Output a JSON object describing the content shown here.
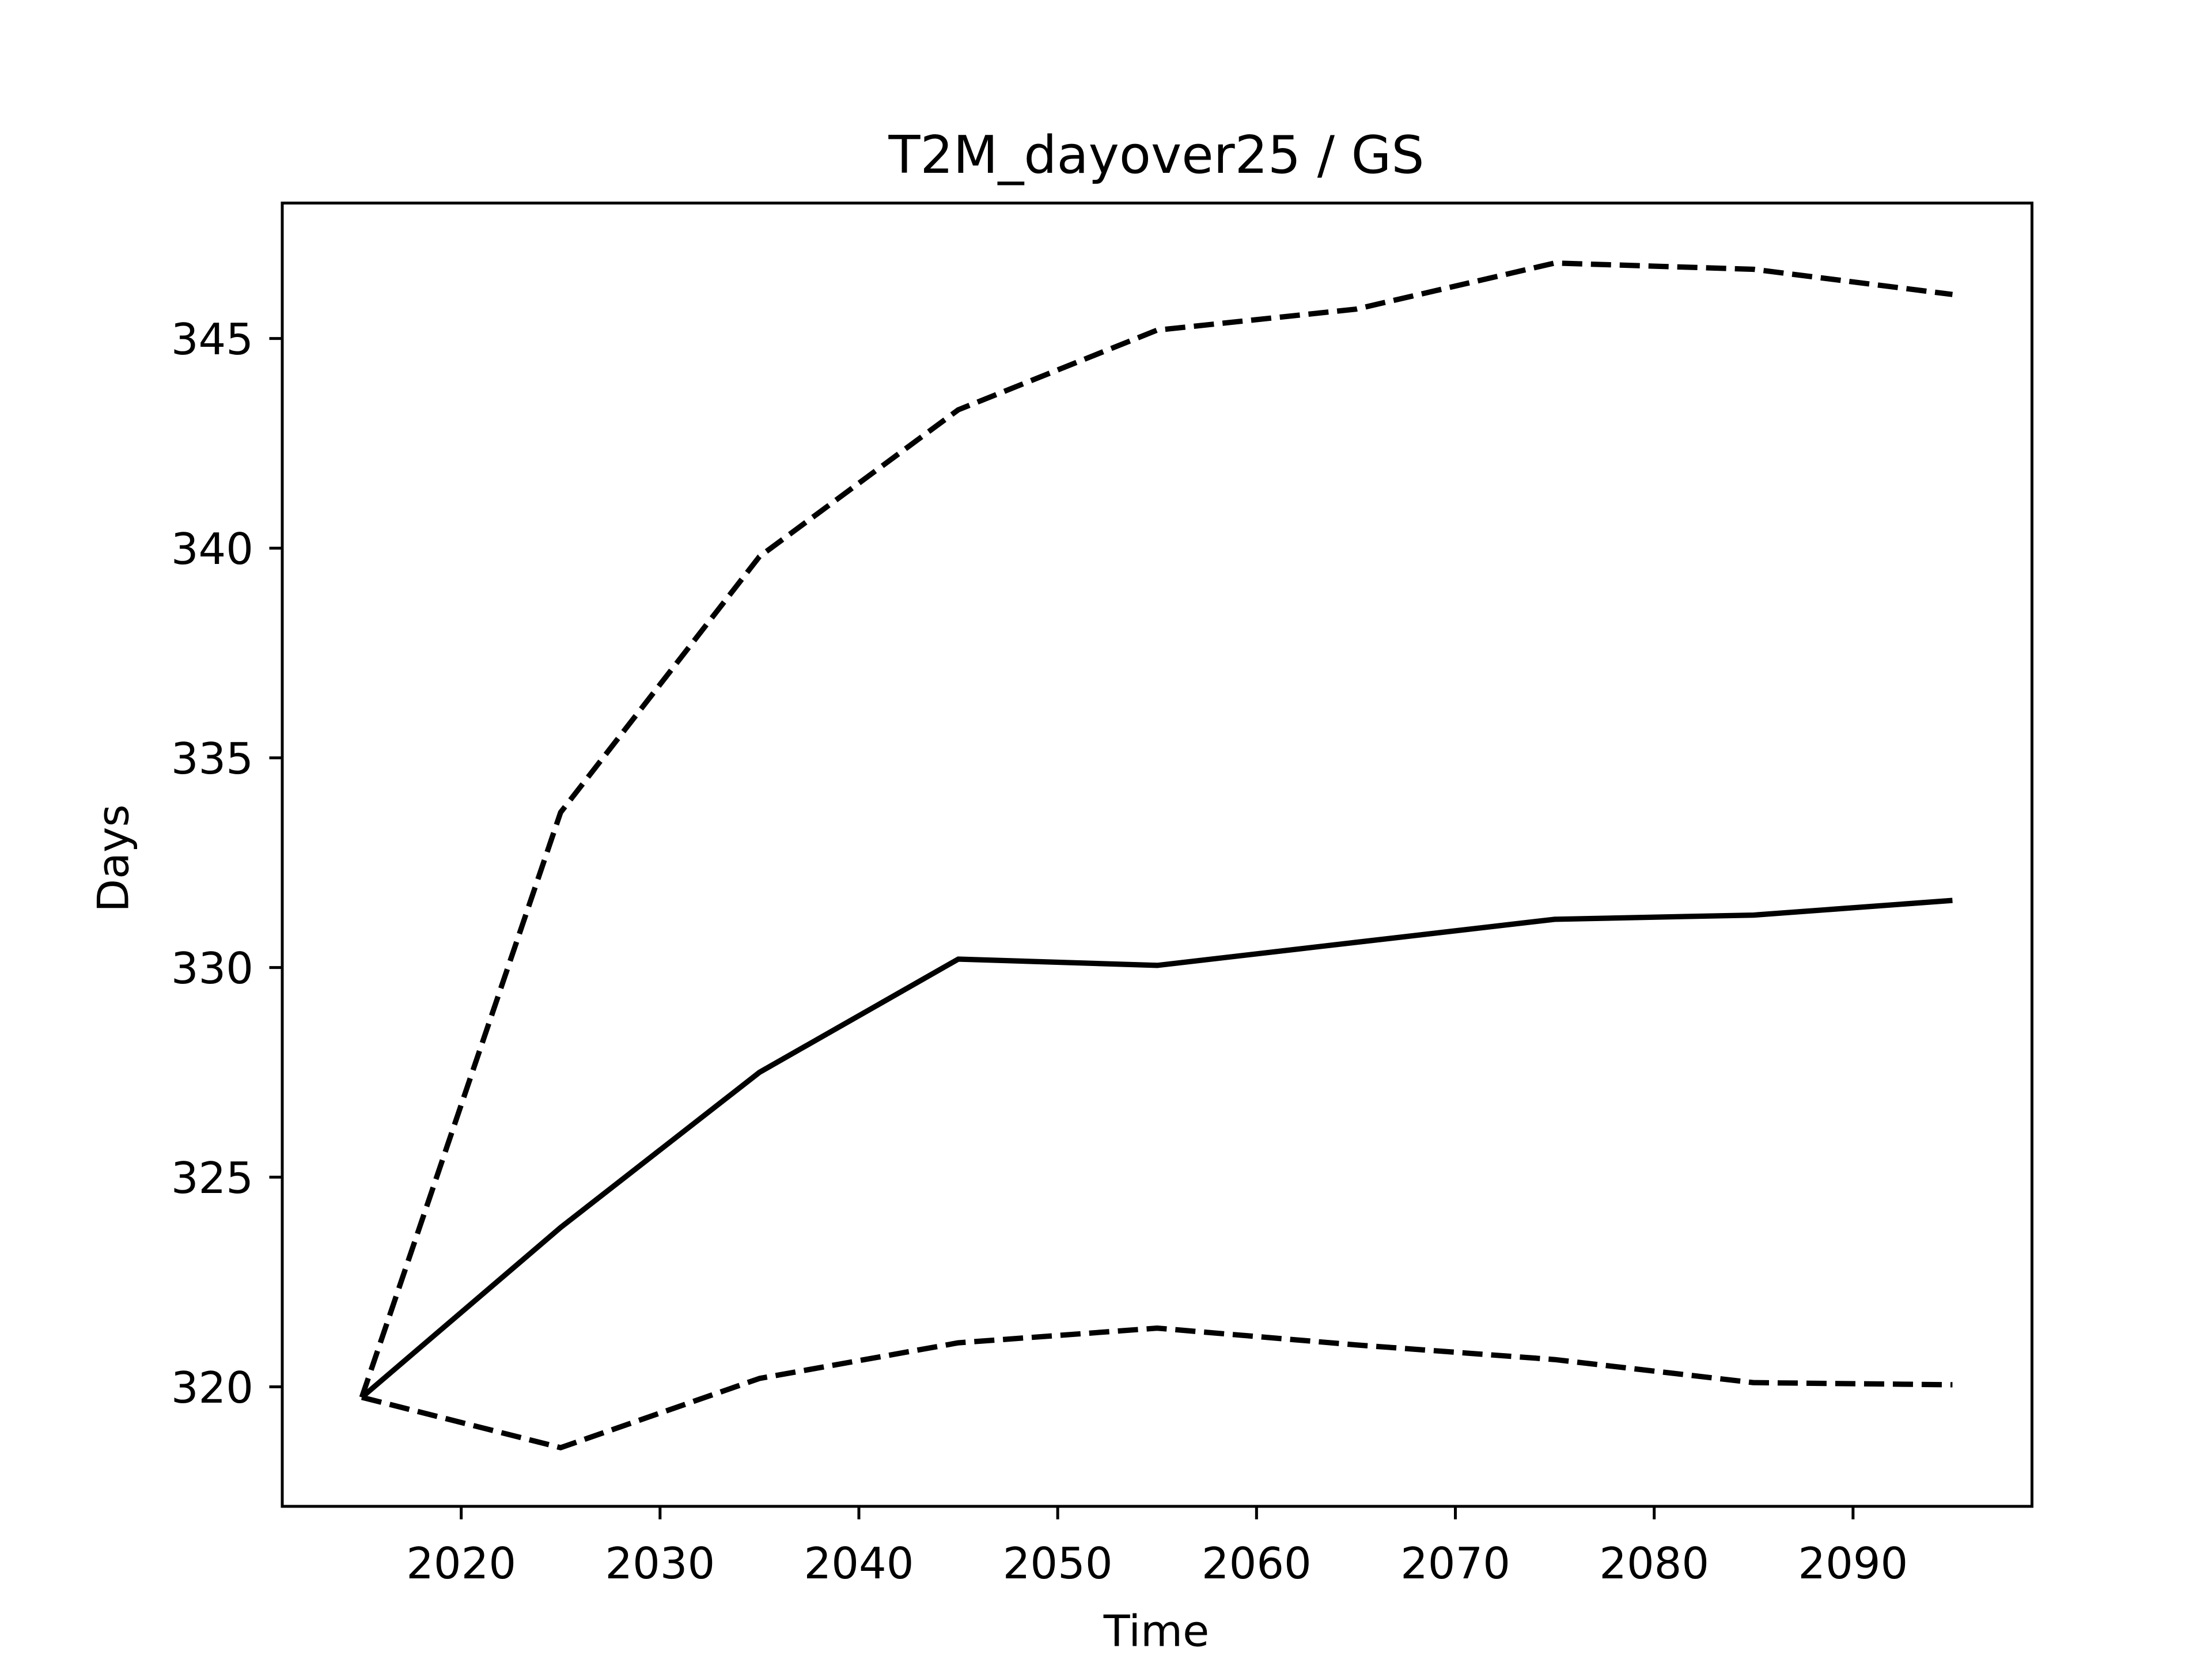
{
  "chart_data": {
    "type": "line",
    "title": "T2M_dayover25 / GS",
    "xlabel": "Time",
    "ylabel": "Days",
    "x": [
      2015,
      2025,
      2035,
      2045,
      2055,
      2065,
      2075,
      2085,
      2095
    ],
    "series": [
      {
        "color": "#000000",
        "linestyle": "solid",
        "values": [
          319.75,
          323.8,
          327.5,
          330.2,
          330.05,
          330.6,
          331.15,
          331.25,
          331.6
        ]
      },
      {
        "color": "#000000",
        "linestyle": "dashed",
        "values": [
          319.75,
          333.7,
          339.8,
          343.3,
          345.2,
          345.7,
          346.8,
          346.65,
          346.05
        ]
      },
      {
        "color": "#000000",
        "linestyle": "dashed",
        "values": [
          319.75,
          318.55,
          320.2,
          321.05,
          321.4,
          321.0,
          320.65,
          320.1,
          320.05
        ]
      }
    ],
    "xlim": [
      2011,
      2099
    ],
    "ylim": [
      317.15,
      348.23
    ],
    "xticks": [
      2020,
      2030,
      2040,
      2050,
      2060,
      2070,
      2080,
      2090
    ],
    "yticks": [
      320,
      325,
      330,
      335,
      340,
      345
    ],
    "grid": false
  }
}
